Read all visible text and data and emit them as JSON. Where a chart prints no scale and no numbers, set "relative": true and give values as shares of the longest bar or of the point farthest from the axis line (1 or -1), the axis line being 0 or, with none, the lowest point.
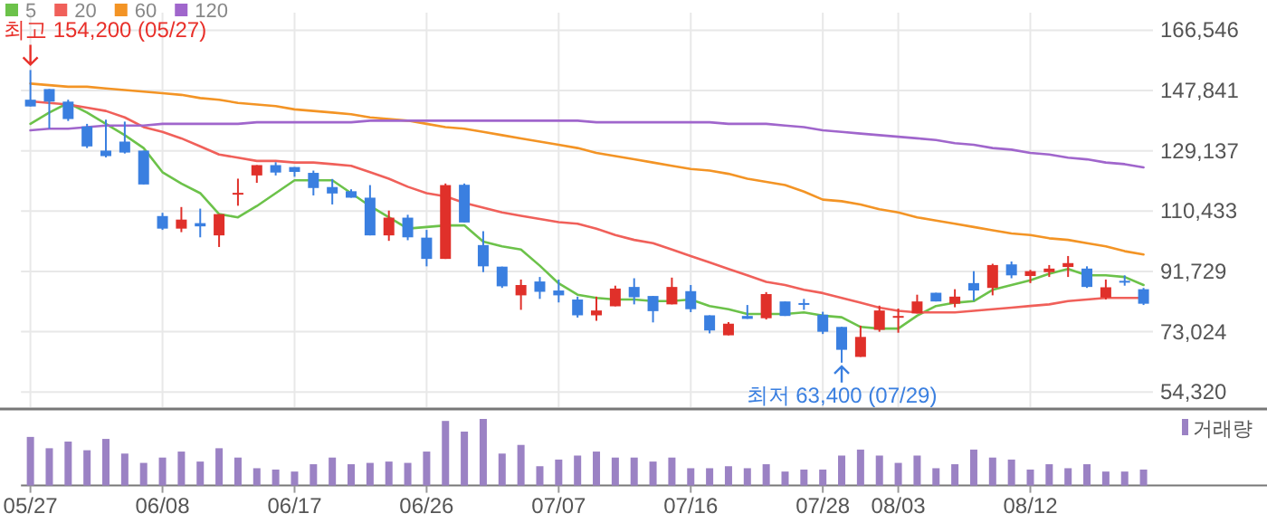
{
  "chart_data": [
    {
      "type": "candlestick",
      "categories": [
        "05/27",
        null,
        null,
        null,
        null,
        null,
        null,
        "06/08",
        null,
        null,
        null,
        null,
        null,
        null,
        "06/17",
        null,
        null,
        null,
        null,
        null,
        null,
        "06/26",
        null,
        null,
        null,
        null,
        null,
        null,
        "07/07",
        null,
        null,
        null,
        null,
        null,
        null,
        "07/16",
        null,
        null,
        null,
        null,
        null,
        null,
        "07/28",
        null,
        null,
        null,
        "08/03",
        null,
        null,
        null,
        null,
        null,
        null,
        "08/12",
        null,
        null,
        null,
        null,
        null,
        null
      ],
      "ohlc": [
        [
          145000,
          154200,
          142900,
          142900
        ],
        [
          148300,
          148300,
          136000,
          144400
        ],
        [
          144400,
          145000,
          138400,
          139000
        ],
        [
          136700,
          137500,
          130000,
          130500
        ],
        [
          129200,
          138800,
          127100,
          127500
        ],
        [
          132000,
          138200,
          128300,
          128600
        ],
        [
          129200,
          129200,
          118700,
          118700
        ],
        [
          108900,
          109900,
          104600,
          105000
        ],
        [
          105000,
          111700,
          103900,
          107800
        ],
        [
          106700,
          111200,
          102300,
          105700
        ],
        [
          102900,
          109500,
          99300,
          109500
        ],
        [
          115900,
          120500,
          112100,
          116100
        ],
        [
          121500,
          124700,
          119200,
          124700
        ],
        [
          124700,
          125600,
          121500,
          122400
        ],
        [
          124100,
          124100,
          121100,
          122600
        ],
        [
          122300,
          123000,
          115300,
          117600
        ],
        [
          117900,
          120400,
          112500,
          115900
        ],
        [
          116600,
          117200,
          114600,
          114600
        ],
        [
          114600,
          118500,
          102900,
          102900
        ],
        [
          102900,
          110600,
          101200,
          108400
        ],
        [
          108400,
          109300,
          101400,
          102300
        ],
        [
          102200,
          104600,
          93300,
          95600
        ],
        [
          95600,
          119000,
          95600,
          118500
        ],
        [
          118600,
          119000,
          106900,
          106900
        ],
        [
          99900,
          104200,
          91500,
          93300
        ],
        [
          93200,
          93200,
          86600,
          87100
        ],
        [
          84300,
          89200,
          79800,
          87500
        ],
        [
          88600,
          90000,
          83200,
          85400
        ],
        [
          85800,
          89200,
          82100,
          84300
        ],
        [
          83000,
          83900,
          77400,
          78100
        ],
        [
          78100,
          83900,
          76400,
          79600
        ],
        [
          80900,
          87300,
          80900,
          86400
        ],
        [
          86900,
          89600,
          81500,
          83700
        ],
        [
          84100,
          84100,
          75900,
          79400
        ],
        [
          81500,
          89800,
          81500,
          86900
        ],
        [
          85600,
          87500,
          79100,
          80000
        ],
        [
          78100,
          78100,
          72500,
          73400
        ],
        [
          71900,
          76000,
          71900,
          75500
        ],
        [
          77900,
          81300,
          77000,
          77000
        ],
        [
          77200,
          85300,
          76800,
          84700
        ],
        [
          82400,
          82400,
          77900,
          77900
        ],
        [
          81900,
          83200,
          79800,
          81500
        ],
        [
          78300,
          79200,
          72300,
          73000
        ],
        [
          74500,
          74500,
          63400,
          67400
        ],
        [
          65200,
          74900,
          65200,
          71400
        ],
        [
          73600,
          81100,
          73000,
          79600
        ],
        [
          77700,
          80200,
          72700,
          77900
        ],
        [
          78700,
          84500,
          78700,
          82400
        ],
        [
          85100,
          85100,
          82400,
          82400
        ],
        [
          81700,
          86200,
          80600,
          83900
        ],
        [
          88100,
          91800,
          82600,
          85800
        ],
        [
          86600,
          94100,
          84300,
          93700
        ],
        [
          93900,
          94800,
          89600,
          90500
        ],
        [
          90300,
          92200,
          88100,
          91800
        ],
        [
          91500,
          93700,
          90000,
          92600
        ],
        [
          93100,
          96500,
          90000,
          94300
        ],
        [
          92600,
          93300,
          86600,
          86900
        ],
        [
          83600,
          89200,
          83000,
          86800
        ],
        [
          88800,
          90500,
          87300,
          88500
        ],
        [
          86200,
          86600,
          81300,
          81700
        ]
      ],
      "series": [
        {
          "name": "5",
          "type": "line",
          "color": "#6cc24a",
          "values": [
            137500,
            141000,
            144000,
            141000,
            137500,
            134000,
            130000,
            122500,
            119000,
            116000,
            109500,
            108500,
            112000,
            116000,
            120000,
            120000,
            120000,
            116000,
            112000,
            108500,
            105000,
            105500,
            106000,
            106000,
            101000,
            99500,
            98500,
            93500,
            88000,
            84500,
            83500,
            83000,
            83000,
            82500,
            82500,
            83000,
            81000,
            80000,
            78500,
            78500,
            78500,
            79000,
            78000,
            77500,
            74500,
            74000,
            74000,
            78000,
            81000,
            82000,
            82500,
            86000,
            87500,
            89000,
            91000,
            92500,
            90500,
            90500,
            90000,
            87500
          ]
        },
        {
          "name": "20",
          "type": "line",
          "color": "#f0605a",
          "values": [
            144500,
            144000,
            143500,
            142500,
            141500,
            139500,
            136500,
            135000,
            133000,
            130500,
            128000,
            127000,
            126000,
            126000,
            125500,
            125500,
            125000,
            124500,
            122500,
            120500,
            118000,
            116000,
            115000,
            113000,
            111500,
            110000,
            109000,
            108000,
            107000,
            106500,
            105000,
            103000,
            101500,
            100500,
            98500,
            96500,
            94500,
            92500,
            90500,
            88500,
            87500,
            86000,
            85000,
            83500,
            82000,
            80500,
            79500,
            79000,
            79000,
            79000,
            79500,
            80000,
            80500,
            81000,
            81500,
            82500,
            83000,
            83500,
            83500,
            83500
          ]
        },
        {
          "name": "60",
          "type": "line",
          "color": "#f39425",
          "values": [
            150000,
            149500,
            149000,
            149000,
            148500,
            148000,
            147500,
            147000,
            146500,
            145500,
            145000,
            144000,
            143500,
            143000,
            142000,
            141500,
            141000,
            140500,
            139500,
            139000,
            138500,
            137500,
            136500,
            136000,
            135000,
            134000,
            133000,
            132000,
            131000,
            130000,
            128500,
            127500,
            126500,
            125500,
            124500,
            123500,
            123000,
            122000,
            120500,
            119500,
            118500,
            116500,
            114000,
            113500,
            112500,
            111000,
            110000,
            108500,
            107500,
            106500,
            105500,
            104500,
            103500,
            103000,
            102000,
            101500,
            100500,
            99500,
            98000,
            97000
          ]
        },
        {
          "name": "120",
          "type": "line",
          "color": "#a066cc",
          "values": [
            135500,
            136000,
            136000,
            136500,
            137000,
            137000,
            137000,
            137500,
            137500,
            137500,
            137500,
            137500,
            138000,
            138000,
            138000,
            138000,
            138000,
            138000,
            138500,
            138500,
            138500,
            138500,
            138500,
            138500,
            138500,
            138500,
            138500,
            138500,
            138500,
            138500,
            138000,
            138000,
            138000,
            138000,
            138000,
            138000,
            138000,
            137500,
            137500,
            137500,
            137000,
            136500,
            135500,
            135000,
            134500,
            134000,
            133500,
            133000,
            132500,
            131500,
            131000,
            130000,
            129500,
            128500,
            128000,
            127000,
            126500,
            125500,
            125000,
            124000
          ]
        }
      ],
      "ylim": [
        49600,
        172000
      ],
      "yticks": [
        {
          "value": 54320,
          "label": "54,320"
        },
        {
          "value": 73024,
          "label": "73,024"
        },
        {
          "value": 91729,
          "label": "91,729"
        },
        {
          "value": 110433,
          "label": "110,433"
        },
        {
          "value": 129137,
          "label": "129,137"
        },
        {
          "value": 147841,
          "label": "147,841"
        },
        {
          "value": 166546,
          "label": "166,546"
        }
      ],
      "tick_labels": "y",
      "grid": true,
      "legend": "top left",
      "annotations": [
        {
          "text": "최고 154,200 (05/27)",
          "x": "05/27",
          "y": 154200
        },
        {
          "text": "최저 63,400 (07/29)",
          "y": 63400
        }
      ]
    },
    {
      "type": "bar",
      "relative": true,
      "categories": [
        "05/27",
        null,
        null,
        null,
        null,
        null,
        null,
        "06/08",
        null,
        null,
        null,
        null,
        null,
        null,
        "06/17",
        null,
        null,
        null,
        null,
        null,
        null,
        "06/26",
        null,
        null,
        null,
        null,
        null,
        null,
        "07/07",
        null,
        null,
        null,
        null,
        null,
        null,
        "07/16",
        null,
        null,
        null,
        null,
        null,
        null,
        "07/28",
        null,
        null,
        null,
        "08/03",
        null,
        null,
        null,
        null,
        null,
        null,
        "08/12",
        null,
        null,
        null,
        null,
        null,
        null
      ],
      "series": [
        {
          "name": "거래량",
          "color": "#9b82c4",
          "values": [
            0.73,
            0.56,
            0.66,
            0.53,
            0.7,
            0.48,
            0.34,
            0.42,
            0.51,
            0.36,
            0.56,
            0.42,
            0.26,
            0.24,
            0.21,
            0.32,
            0.42,
            0.32,
            0.34,
            0.36,
            0.34,
            0.51,
            0.97,
            0.81,
            1,
            0.48,
            0.61,
            0.29,
            0.39,
            0.45,
            0.51,
            0.42,
            0.42,
            0.36,
            0.42,
            0.26,
            0.26,
            0.29,
            0.26,
            0.32,
            0.21,
            0.24,
            0.24,
            0.45,
            0.54,
            0.45,
            0.34,
            0.45,
            0.26,
            0.32,
            0.54,
            0.42,
            0.39,
            0.24,
            0.32,
            0.26,
            0.32,
            0.21,
            0.21,
            0.24
          ]
        }
      ],
      "tick_labels": "x",
      "legend": "top right"
    }
  ]
}
